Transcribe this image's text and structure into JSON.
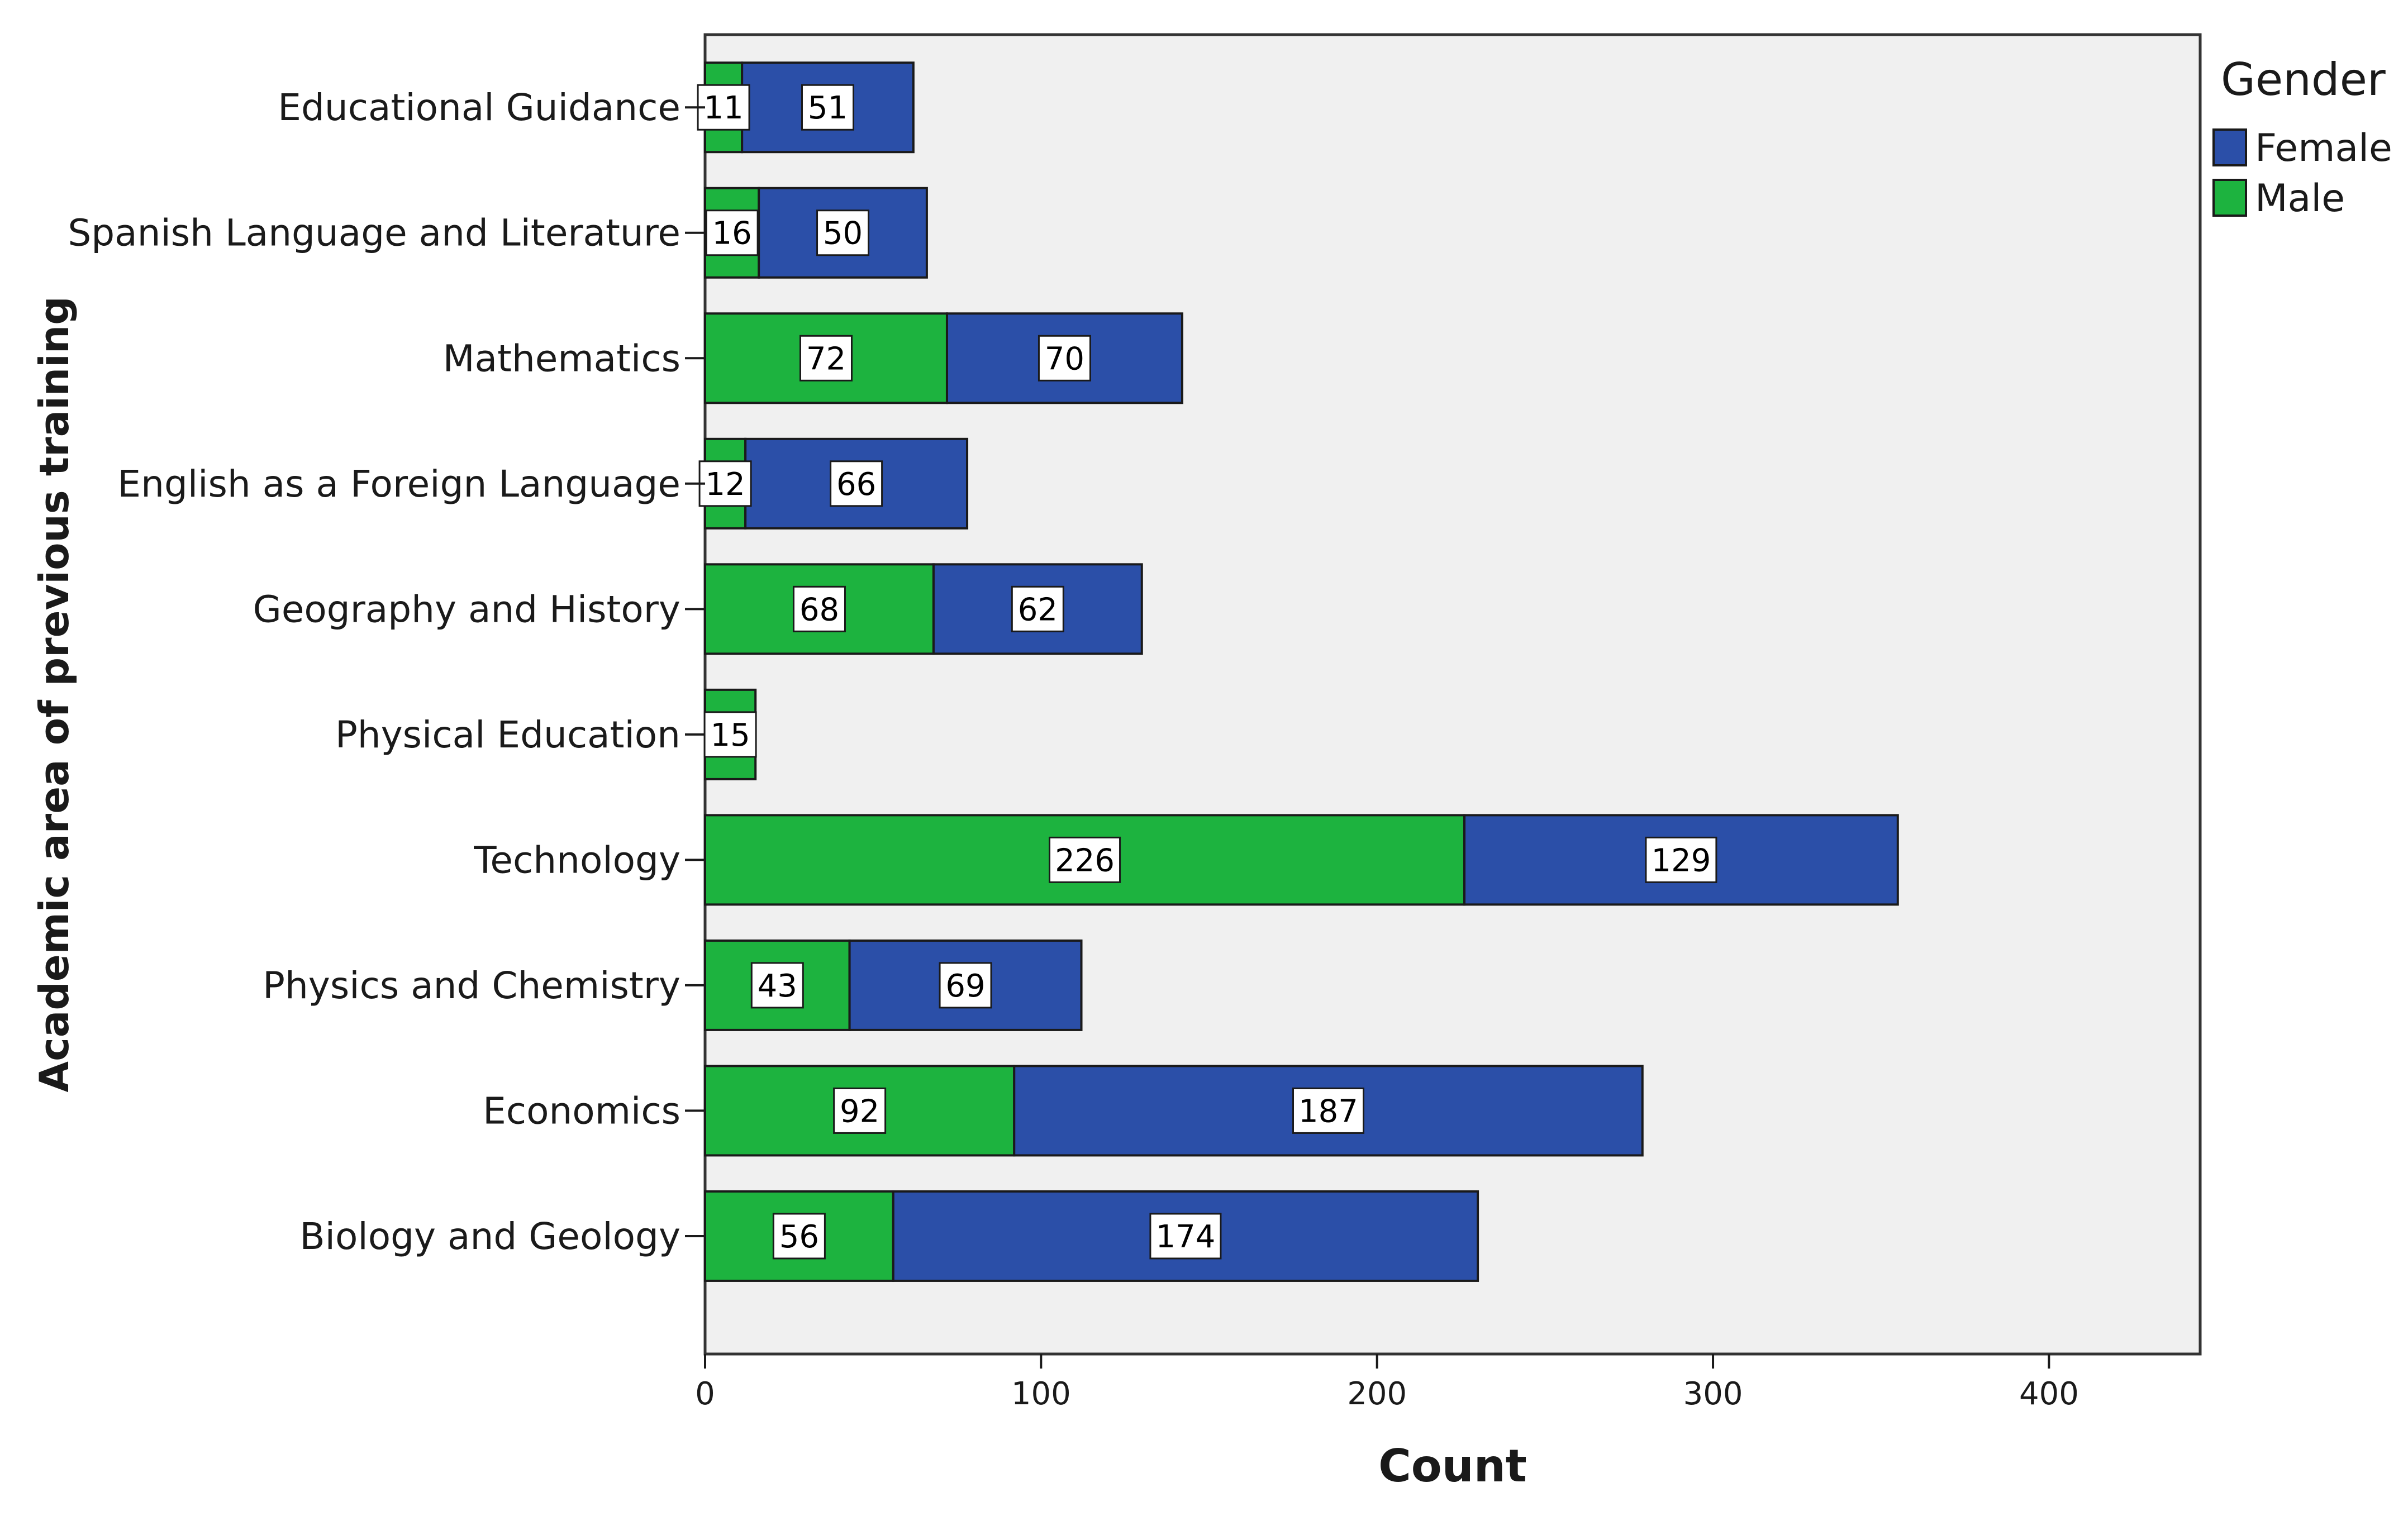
{
  "chart_data": {
    "type": "bar",
    "orientation": "horizontal",
    "stacked": true,
    "title": "",
    "xlabel": "Count",
    "ylabel": "Academic area of previous training",
    "xlim": [
      0,
      445
    ],
    "xticks": [
      0,
      100,
      200,
      300,
      400
    ],
    "grid": false,
    "legend_title": "Gender",
    "legend_position": "top-right",
    "categories": [
      "Educational Guidance",
      "Spanish Language and Literature",
      "Mathematics",
      "English as a Foreign Language",
      "Geography and History",
      "Physical Education",
      "Technology",
      "Physics and Chemistry",
      "Economics",
      "Biology and Geology"
    ],
    "series": [
      {
        "name": "Female",
        "color": "#2b4fa8",
        "values": [
          51,
          50,
          70,
          66,
          62,
          0,
          129,
          69,
          187,
          174
        ]
      },
      {
        "name": "Male",
        "color": "#1db33f",
        "values": [
          11,
          16,
          72,
          12,
          68,
          15,
          226,
          43,
          92,
          56
        ]
      }
    ],
    "stack_order": [
      "Male",
      "Female"
    ],
    "plot_background": "#f0f0f0"
  }
}
